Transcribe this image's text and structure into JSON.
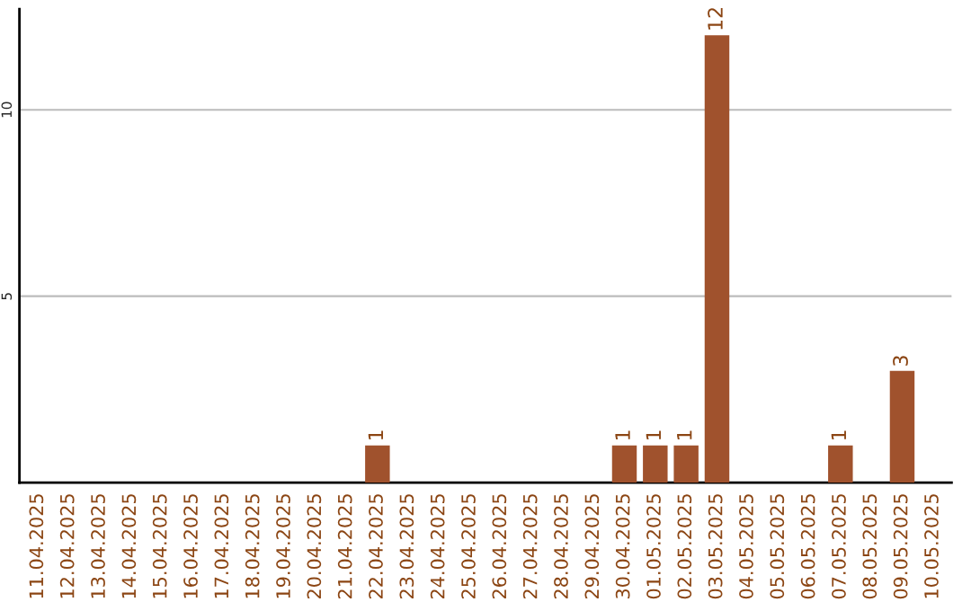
{
  "chart_data": {
    "type": "bar",
    "categories": [
      "11.04.2025",
      "12.04.2025",
      "13.04.2025",
      "14.04.2025",
      "15.04.2025",
      "16.04.2025",
      "17.04.2025",
      "18.04.2025",
      "19.04.2025",
      "20.04.2025",
      "21.04.2025",
      "22.04.2025",
      "23.04.2025",
      "24.04.2025",
      "25.04.2025",
      "26.04.2025",
      "27.04.2025",
      "28.04.2025",
      "29.04.2025",
      "30.04.2025",
      "01.05.2025",
      "02.05.2025",
      "03.05.2025",
      "04.05.2025",
      "05.05.2025",
      "06.05.2025",
      "07.05.2025",
      "08.05.2025",
      "09.05.2025",
      "10.05.2025"
    ],
    "values": [
      0,
      0,
      0,
      0,
      0,
      0,
      0,
      0,
      0,
      0,
      0,
      1,
      0,
      0,
      0,
      0,
      0,
      0,
      0,
      1,
      1,
      1,
      12,
      0,
      0,
      0,
      1,
      0,
      3,
      0
    ],
    "value_labels": [
      null,
      null,
      null,
      null,
      null,
      null,
      null,
      null,
      null,
      null,
      null,
      "1",
      null,
      null,
      null,
      null,
      null,
      null,
      null,
      "1",
      "1",
      "1",
      "12",
      null,
      null,
      null,
      "1",
      null,
      "3",
      null
    ],
    "color": "#a0522d",
    "ylim": [
      0,
      12.7
    ],
    "yticks": [
      5,
      10
    ],
    "grid": "y"
  }
}
